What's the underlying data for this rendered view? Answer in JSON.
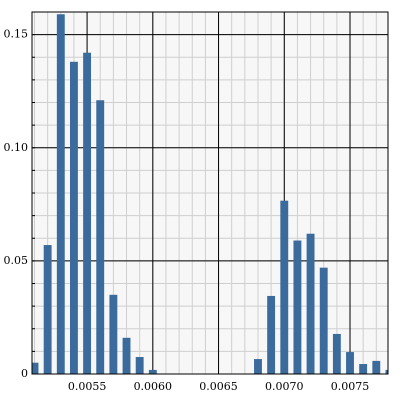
{
  "chart_data": {
    "type": "bar",
    "x": [
      0.0051,
      0.0052,
      0.0053,
      0.0054,
      0.0055,
      0.0056,
      0.0057,
      0.0058,
      0.0059,
      0.006,
      0.0061,
      0.0062,
      0.0063,
      0.0064,
      0.0065,
      0.0066,
      0.0067,
      0.0068,
      0.0069,
      0.007,
      0.0071,
      0.0072,
      0.0073,
      0.0074,
      0.0075,
      0.0076,
      0.0077,
      0.0078
    ],
    "values": [
      0.005,
      0.057,
      0.159,
      0.138,
      0.142,
      0.121,
      0.035,
      0.016,
      0.0075,
      0.0018,
      0,
      0,
      0,
      0,
      0,
      0,
      0,
      0.0066,
      0.0345,
      0.0766,
      0.059,
      0.062,
      0.047,
      0.0177,
      0.0097,
      0.0044,
      0.0058,
      0.0018
    ],
    "color": "#3a6b9c",
    "xlim": [
      0.005081,
      0.007789
    ],
    "ylim": [
      0,
      0.16
    ],
    "xticks": [
      0.0055,
      {
        "value": 0.006,
        "label": "0.0060"
      },
      0.0065,
      {
        "value": 0.007,
        "label": "0.0070"
      },
      0.0075
    ],
    "yticks": [
      0,
      0.05,
      {
        "value": 0.1,
        "label": "0.10"
      },
      0.15
    ],
    "grid": true,
    "minor_grid": true
  }
}
